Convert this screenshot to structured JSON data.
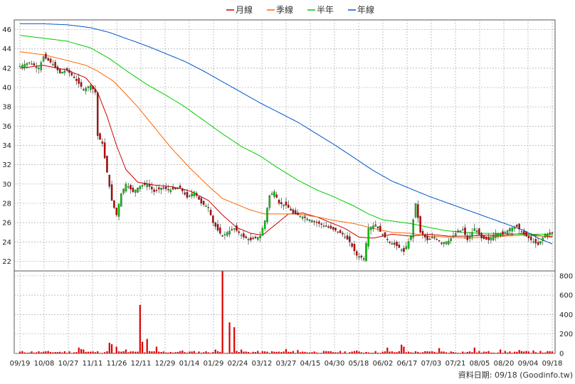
{
  "chart_data": {
    "type": "candlestick",
    "legend": [
      {
        "label": "月線",
        "color": "#cc0000"
      },
      {
        "label": "季線",
        "color": "#ff6600"
      },
      {
        "label": "半年",
        "color": "#00cc00"
      },
      {
        "label": "年線",
        "color": "#0055cc"
      }
    ],
    "price_axis": {
      "ticks": [
        "46",
        "44",
        "42",
        "40",
        "38",
        "36",
        "34",
        "32",
        "30",
        "28",
        "26",
        "24",
        "22"
      ],
      "ylim": [
        21,
        47
      ]
    },
    "volume_axis": {
      "ticks": [
        "800",
        "600",
        "400",
        "200",
        "0"
      ],
      "ylim": [
        0,
        850
      ]
    },
    "x_ticks": [
      "09/19",
      "10/08",
      "10/27",
      "11/11",
      "11/26",
      "12/11",
      "12/29",
      "01/14",
      "01/29",
      "02/24",
      "03/12",
      "03/27",
      "04/15",
      "04/30",
      "05/18",
      "06/02",
      "06/17",
      "07/03",
      "07/21",
      "08/05",
      "08/20",
      "09/04",
      "09/18"
    ],
    "credit": "資料日期: 09/18  (Goodinfo.tw)",
    "colors": {
      "up": "#00cc00",
      "down": "#cc0000",
      "grid": "#aaaaaa"
    },
    "close_anchors": [
      [
        0,
        42.2
      ],
      [
        4,
        42.6
      ],
      [
        8,
        42.0
      ],
      [
        10,
        43.2
      ],
      [
        14,
        42.4
      ],
      [
        17,
        41.5
      ],
      [
        20,
        41.8
      ],
      [
        23,
        41.0
      ],
      [
        27,
        39.8
      ],
      [
        30,
        40.2
      ],
      [
        32,
        39.5
      ],
      [
        33,
        35.0
      ],
      [
        35,
        34.2
      ],
      [
        37,
        31.2
      ],
      [
        39,
        28.3
      ],
      [
        41,
        26.8
      ],
      [
        43,
        29.0
      ],
      [
        45,
        30.0
      ],
      [
        48,
        29.2
      ],
      [
        51,
        29.8
      ],
      [
        54,
        30.0
      ],
      [
        57,
        29.2
      ],
      [
        60,
        29.6
      ],
      [
        64,
        29.4
      ],
      [
        68,
        29.6
      ],
      [
        71,
        28.6
      ],
      [
        74,
        29.2
      ],
      [
        77,
        28.0
      ],
      [
        80,
        27.6
      ],
      [
        82,
        26.0
      ],
      [
        84,
        25.2
      ],
      [
        86,
        24.6
      ],
      [
        88,
        25.0
      ],
      [
        91,
        25.4
      ],
      [
        95,
        24.5
      ],
      [
        98,
        24.2
      ],
      [
        102,
        24.6
      ],
      [
        104,
        26.2
      ],
      [
        106,
        28.8
      ],
      [
        108,
        29.2
      ],
      [
        110,
        28.0
      ],
      [
        113,
        27.8
      ],
      [
        116,
        27.0
      ],
      [
        120,
        26.6
      ],
      [
        124,
        26.2
      ],
      [
        127,
        25.9
      ],
      [
        130,
        25.6
      ],
      [
        134,
        25.2
      ],
      [
        137,
        24.8
      ],
      [
        140,
        24.0
      ],
      [
        143,
        22.6
      ],
      [
        146,
        22.3
      ],
      [
        148,
        25.4
      ],
      [
        151,
        25.8
      ],
      [
        154,
        24.7
      ],
      [
        157,
        24.0
      ],
      [
        160,
        23.6
      ],
      [
        163,
        23.0
      ],
      [
        166,
        24.6
      ],
      [
        168,
        28.0
      ],
      [
        170,
        25.0
      ],
      [
        173,
        24.2
      ],
      [
        176,
        24.5
      ],
      [
        179,
        23.9
      ],
      [
        182,
        24.1
      ],
      [
        185,
        24.9
      ],
      [
        188,
        25.3
      ],
      [
        190,
        24.2
      ],
      [
        193,
        25.4
      ],
      [
        196,
        24.4
      ],
      [
        199,
        24.2
      ],
      [
        202,
        24.9
      ],
      [
        205,
        24.8
      ],
      [
        208,
        25.4
      ],
      [
        211,
        25.6
      ],
      [
        214,
        24.8
      ],
      [
        217,
        24.2
      ],
      [
        220,
        23.7
      ],
      [
        223,
        24.8
      ],
      [
        226,
        24.9
      ]
    ],
    "volume_spikes": [
      [
        25,
        60
      ],
      [
        26,
        45
      ],
      [
        27,
        40
      ],
      [
        38,
        110
      ],
      [
        39,
        95
      ],
      [
        41,
        70
      ],
      [
        45,
        40
      ],
      [
        51,
        500
      ],
      [
        52,
        120
      ],
      [
        54,
        150
      ],
      [
        58,
        70
      ],
      [
        69,
        30
      ],
      [
        83,
        40
      ],
      [
        86,
        850
      ],
      [
        89,
        320
      ],
      [
        91,
        270
      ],
      [
        94,
        40
      ],
      [
        113,
        45
      ],
      [
        118,
        35
      ],
      [
        143,
        30
      ],
      [
        156,
        60
      ],
      [
        162,
        90
      ],
      [
        163,
        70
      ],
      [
        178,
        55
      ],
      [
        193,
        60
      ],
      [
        204,
        40
      ],
      [
        212,
        35
      ],
      [
        218,
        30
      ]
    ],
    "ma_anchors": {
      "月線": [
        [
          0,
          42.0
        ],
        [
          10,
          42.3
        ],
        [
          20,
          41.8
        ],
        [
          28,
          41.0
        ],
        [
          33,
          39.5
        ],
        [
          37,
          37.0
        ],
        [
          41,
          34.0
        ],
        [
          45,
          31.5
        ],
        [
          50,
          30.2
        ],
        [
          57,
          29.9
        ],
        [
          65,
          29.7
        ],
        [
          72,
          29.3
        ],
        [
          80,
          28.3
        ],
        [
          86,
          26.8
        ],
        [
          92,
          25.5
        ],
        [
          98,
          24.9
        ],
        [
          103,
          24.7
        ],
        [
          108,
          25.7
        ],
        [
          114,
          26.9
        ],
        [
          120,
          27.0
        ],
        [
          126,
          26.6
        ],
        [
          132,
          26.0
        ],
        [
          138,
          25.4
        ],
        [
          144,
          24.5
        ],
        [
          150,
          24.4
        ],
        [
          158,
          24.8
        ],
        [
          166,
          24.6
        ],
        [
          174,
          24.8
        ],
        [
          182,
          24.6
        ],
        [
          190,
          24.6
        ],
        [
          198,
          24.7
        ],
        [
          206,
          24.7
        ],
        [
          214,
          24.9
        ],
        [
          222,
          24.6
        ],
        [
          226,
          24.5
        ]
      ],
      "季線": [
        [
          0,
          43.7
        ],
        [
          10,
          43.4
        ],
        [
          20,
          42.8
        ],
        [
          28,
          42.3
        ],
        [
          33,
          41.7
        ],
        [
          40,
          40.6
        ],
        [
          50,
          38.0
        ],
        [
          58,
          35.6
        ],
        [
          64,
          33.8
        ],
        [
          72,
          31.7
        ],
        [
          80,
          29.8
        ],
        [
          86,
          28.5
        ],
        [
          92,
          27.9
        ],
        [
          98,
          27.3
        ],
        [
          104,
          26.9
        ],
        [
          110,
          26.9
        ],
        [
          118,
          26.9
        ],
        [
          126,
          26.6
        ],
        [
          134,
          26.2
        ],
        [
          142,
          25.9
        ],
        [
          150,
          25.4
        ],
        [
          158,
          25.0
        ],
        [
          166,
          24.9
        ],
        [
          174,
          24.6
        ],
        [
          182,
          24.5
        ],
        [
          190,
          24.4
        ],
        [
          198,
          24.5
        ],
        [
          206,
          24.6
        ],
        [
          214,
          24.7
        ],
        [
          222,
          24.6
        ],
        [
          226,
          24.6
        ]
      ],
      "半年": [
        [
          0,
          45.4
        ],
        [
          10,
          45.1
        ],
        [
          20,
          44.8
        ],
        [
          30,
          44.1
        ],
        [
          38,
          43.0
        ],
        [
          46,
          41.6
        ],
        [
          54,
          40.3
        ],
        [
          62,
          39.2
        ],
        [
          70,
          38.0
        ],
        [
          78,
          36.6
        ],
        [
          86,
          35.2
        ],
        [
          94,
          33.9
        ],
        [
          102,
          32.9
        ],
        [
          110,
          31.6
        ],
        [
          118,
          30.4
        ],
        [
          126,
          29.4
        ],
        [
          134,
          28.6
        ],
        [
          142,
          27.7
        ],
        [
          148,
          26.9
        ],
        [
          154,
          26.3
        ],
        [
          160,
          26.1
        ],
        [
          166,
          25.9
        ],
        [
          172,
          25.6
        ],
        [
          180,
          25.2
        ],
        [
          188,
          25.0
        ],
        [
          196,
          24.9
        ],
        [
          204,
          24.9
        ],
        [
          212,
          24.8
        ],
        [
          220,
          24.8
        ],
        [
          226,
          24.8
        ]
      ],
      "年線": [
        [
          0,
          46.6
        ],
        [
          10,
          46.6
        ],
        [
          20,
          46.5
        ],
        [
          30,
          46.2
        ],
        [
          38,
          45.7
        ],
        [
          46,
          45.0
        ],
        [
          54,
          44.3
        ],
        [
          62,
          43.5
        ],
        [
          70,
          42.7
        ],
        [
          78,
          41.7
        ],
        [
          86,
          40.6
        ],
        [
          94,
          39.5
        ],
        [
          102,
          38.4
        ],
        [
          110,
          37.4
        ],
        [
          118,
          36.4
        ],
        [
          126,
          35.2
        ],
        [
          134,
          34.0
        ],
        [
          142,
          32.7
        ],
        [
          150,
          31.4
        ],
        [
          158,
          30.3
        ],
        [
          166,
          29.5
        ],
        [
          174,
          28.7
        ],
        [
          182,
          28.0
        ],
        [
          190,
          27.3
        ],
        [
          198,
          26.6
        ],
        [
          206,
          25.9
        ],
        [
          214,
          25.2
        ],
        [
          220,
          24.4
        ],
        [
          226,
          23.8
        ]
      ]
    }
  }
}
